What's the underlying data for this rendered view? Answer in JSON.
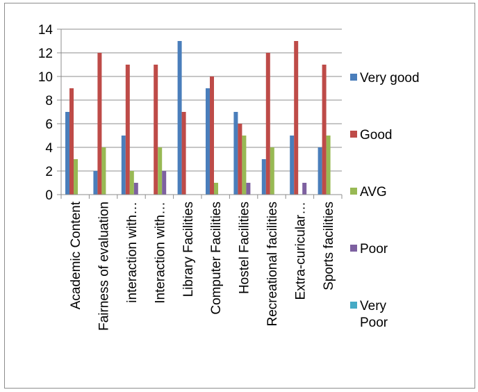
{
  "chart_data": {
    "type": "bar",
    "title": "",
    "xlabel": "",
    "ylabel": "",
    "ylim": [
      0,
      14
    ],
    "yticks": [
      0,
      2,
      4,
      6,
      8,
      10,
      12,
      14
    ],
    "grid": true,
    "legend_position": "right",
    "categories": [
      "Academic  Content",
      "Fairness of evaluation",
      "interaction with…",
      "Interaction with…",
      "Library Facilities",
      "Computer Facilities",
      "Hostel Facilities",
      "Recreational facilities",
      "Extra-curicular…",
      "Sports facilities"
    ],
    "series": [
      {
        "name": "Very good",
        "color": "#4a7ebb",
        "values": [
          7,
          2,
          5,
          0,
          13,
          9,
          7,
          3,
          5,
          4
        ]
      },
      {
        "name": "Good",
        "color": "#be4b48",
        "values": [
          9,
          12,
          11,
          11,
          7,
          10,
          6,
          12,
          13,
          11
        ]
      },
      {
        "name": "AVG",
        "color": "#98b954",
        "values": [
          3,
          4,
          2,
          4,
          0,
          1,
          5,
          4,
          0,
          5
        ]
      },
      {
        "name": "Poor",
        "color": "#7d60a0",
        "values": [
          0,
          0,
          1,
          2,
          0,
          0,
          1,
          0,
          1,
          0
        ]
      },
      {
        "name": "Very\nPoor",
        "color": "#46aac5",
        "values": [
          0,
          0,
          0,
          0,
          0,
          0,
          0,
          0,
          0,
          0
        ]
      }
    ]
  }
}
